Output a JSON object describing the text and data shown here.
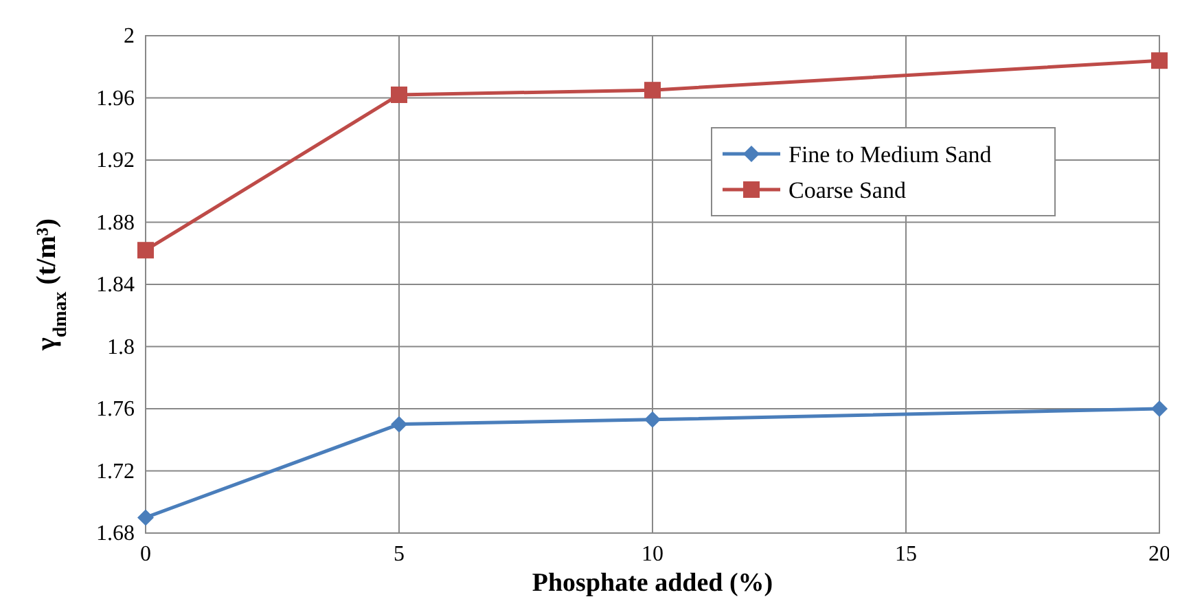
{
  "chart_data": {
    "type": "line",
    "xlabel": "Phosphate added (%)",
    "ylabel": "γ$_{dmax}$ (t/m³)",
    "x": [
      0,
      5,
      10,
      20
    ],
    "series": [
      {
        "name": "Fine to Medium Sand",
        "color": "#4a7ebb",
        "marker": "diamond",
        "values": [
          1.69,
          1.75,
          1.753,
          1.76
        ]
      },
      {
        "name": "Coarse Sand",
        "color": "#be4b48",
        "marker": "square",
        "values": [
          1.862,
          1.962,
          1.965,
          1.984
        ]
      }
    ],
    "xlim": [
      0,
      20
    ],
    "xticks": [
      0,
      5,
      10,
      15,
      20
    ],
    "ylim": [
      1.68,
      2
    ],
    "yticks": [
      1.68,
      1.72,
      1.76,
      1.8,
      1.84,
      1.88,
      1.92,
      1.96,
      2
    ],
    "grid": true,
    "legend": "top right",
    "line_style": "solid"
  }
}
